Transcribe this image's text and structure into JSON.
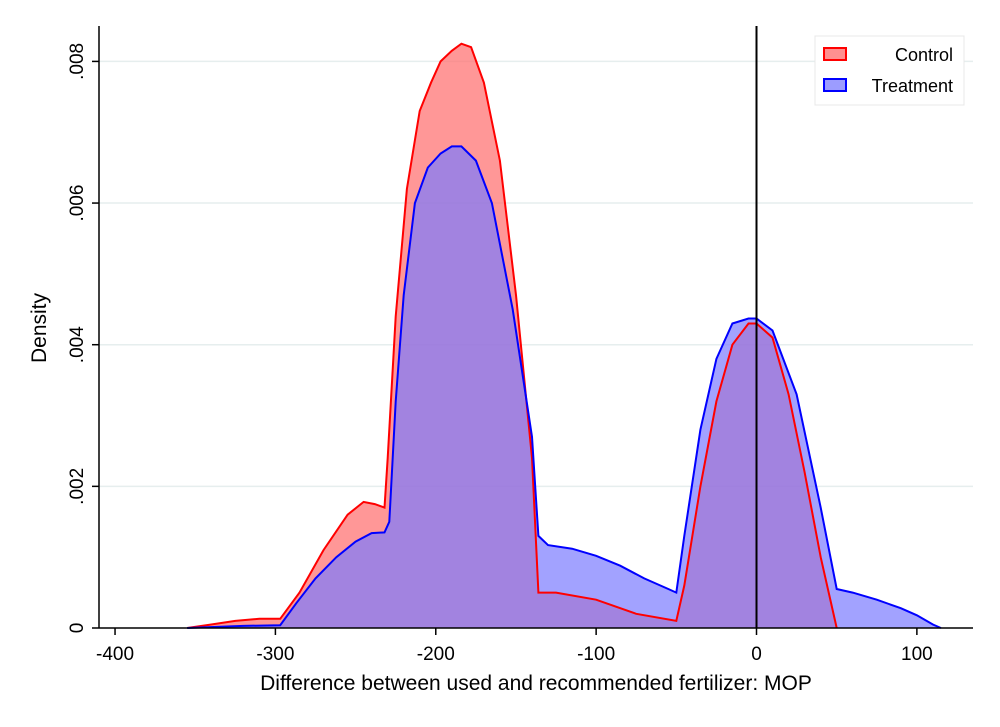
{
  "chart_data": {
    "type": "area",
    "title": "",
    "xlabel": "Difference between used and recommended fertilizer: MOP",
    "ylabel": "Density",
    "xlim": [
      -410,
      135
    ],
    "ylim": [
      0,
      0.0085
    ],
    "xticks": [
      -400,
      -300,
      -200,
      -100,
      0,
      100
    ],
    "xtick_labels": [
      "-400",
      "-300",
      "-200",
      "-100",
      "0",
      "100"
    ],
    "yticks": [
      0,
      0.002,
      0.004,
      0.006,
      0.008
    ],
    "ytick_labels": [
      "0",
      ".002",
      ".004",
      ".006",
      ".008"
    ],
    "grid": true,
    "legend_position": "top-right",
    "reference_line_x": 0,
    "series": [
      {
        "name": "Control",
        "color": "#ff0000",
        "fill": "#ff6b6b",
        "points": [
          [
            -355,
            0
          ],
          [
            -340,
            5e-05
          ],
          [
            -325,
            0.0001
          ],
          [
            -310,
            0.00013
          ],
          [
            -297,
            0.00013
          ],
          [
            -285,
            0.0005
          ],
          [
            -270,
            0.0011
          ],
          [
            -255,
            0.0016
          ],
          [
            -245,
            0.00178
          ],
          [
            -238,
            0.00175
          ],
          [
            -232,
            0.0017
          ],
          [
            -230,
            0.0024
          ],
          [
            -225,
            0.0044
          ],
          [
            -218,
            0.0062
          ],
          [
            -210,
            0.0073
          ],
          [
            -203,
            0.0077
          ],
          [
            -197,
            0.008
          ],
          [
            -190,
            0.00815
          ],
          [
            -184,
            0.00825
          ],
          [
            -178,
            0.0082
          ],
          [
            -170,
            0.0077
          ],
          [
            -160,
            0.0066
          ],
          [
            -150,
            0.0047
          ],
          [
            -140,
            0.0024
          ],
          [
            -136,
            0.0005
          ],
          [
            -125,
            0.0005
          ],
          [
            -100,
            0.0004
          ],
          [
            -75,
            0.0002
          ],
          [
            -50,
            0.0001
          ],
          [
            -45,
            0.0006
          ],
          [
            -35,
            0.002
          ],
          [
            -25,
            0.0032
          ],
          [
            -15,
            0.004
          ],
          [
            -5,
            0.0043
          ],
          [
            0,
            0.0043
          ],
          [
            10,
            0.0041
          ],
          [
            20,
            0.0033
          ],
          [
            30,
            0.0022
          ],
          [
            40,
            0.001
          ],
          [
            49,
            0.0001
          ],
          [
            50,
            0
          ]
        ]
      },
      {
        "name": "Treatment",
        "color": "#0000ff",
        "fill": "#7b7bff",
        "points": [
          [
            -355,
            0
          ],
          [
            -320,
            3e-05
          ],
          [
            -297,
            4e-05
          ],
          [
            -287,
            0.00035
          ],
          [
            -275,
            0.0007
          ],
          [
            -262,
            0.001
          ],
          [
            -250,
            0.00122
          ],
          [
            -240,
            0.00134
          ],
          [
            -232,
            0.00135
          ],
          [
            -229,
            0.0015
          ],
          [
            -225,
            0.0032
          ],
          [
            -220,
            0.0047
          ],
          [
            -213,
            0.006
          ],
          [
            -205,
            0.0065
          ],
          [
            -197,
            0.0067
          ],
          [
            -190,
            0.0068
          ],
          [
            -184,
            0.0068
          ],
          [
            -175,
            0.0066
          ],
          [
            -165,
            0.006
          ],
          [
            -152,
            0.0045
          ],
          [
            -140,
            0.0027
          ],
          [
            -136,
            0.0013
          ],
          [
            -130,
            0.00117
          ],
          [
            -115,
            0.00112
          ],
          [
            -100,
            0.00102
          ],
          [
            -85,
            0.00088
          ],
          [
            -70,
            0.0007
          ],
          [
            -55,
            0.00055
          ],
          [
            -50,
            0.0005
          ],
          [
            -45,
            0.0013
          ],
          [
            -35,
            0.0028
          ],
          [
            -25,
            0.0038
          ],
          [
            -15,
            0.0043
          ],
          [
            -5,
            0.00437
          ],
          [
            0,
            0.00437
          ],
          [
            10,
            0.0042
          ],
          [
            25,
            0.0033
          ],
          [
            40,
            0.0017
          ],
          [
            50,
            0.00055
          ],
          [
            60,
            0.0005
          ],
          [
            75,
            0.0004
          ],
          [
            90,
            0.00028
          ],
          [
            100,
            0.00018
          ],
          [
            110,
            5e-05
          ],
          [
            115,
            0
          ]
        ]
      }
    ]
  }
}
